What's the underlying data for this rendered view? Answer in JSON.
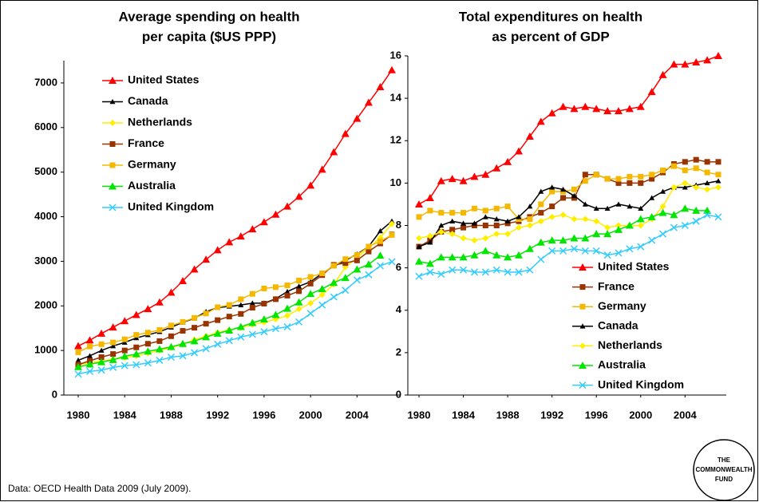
{
  "chart_data": [
    {
      "type": "line",
      "title": [
        "Average spending on health",
        "per capita ($US PPP)"
      ],
      "x": [
        1980,
        1981,
        1982,
        1983,
        1984,
        1985,
        1986,
        1987,
        1988,
        1989,
        1990,
        1991,
        1992,
        1993,
        1994,
        1995,
        1996,
        1997,
        1998,
        1999,
        2000,
        2001,
        2002,
        2003,
        2004,
        2005,
        2006,
        2007
      ],
      "xlim": [
        1980,
        2007
      ],
      "xticks": [
        1980,
        1984,
        1988,
        1992,
        1996,
        2000,
        2004
      ],
      "ylim": [
        0,
        7500
      ],
      "yticks": [
        0,
        1000,
        2000,
        3000,
        4000,
        5000,
        6000,
        7000
      ],
      "legend": "upper left",
      "series": [
        {
          "name": "United States",
          "color": "#ff0000",
          "marker": "triangle",
          "values": [
            1100,
            1230,
            1380,
            1520,
            1660,
            1800,
            1930,
            2080,
            2300,
            2560,
            2820,
            3040,
            3250,
            3430,
            3560,
            3720,
            3880,
            4050,
            4230,
            4450,
            4700,
            5060,
            5450,
            5860,
            6200,
            6560,
            6910,
            7290
          ]
        },
        {
          "name": "Canada",
          "color": "#000000",
          "marker": "small-triangle",
          "values": [
            780,
            880,
            1000,
            1100,
            1180,
            1280,
            1350,
            1420,
            1520,
            1630,
            1720,
            1870,
            1960,
            1990,
            2020,
            2060,
            2060,
            2160,
            2320,
            2440,
            2540,
            2730,
            2890,
            3020,
            3160,
            3330,
            3680,
            3900
          ]
        },
        {
          "name": "Netherlands",
          "color": "#ffee00",
          "marker": "diamond",
          "values": [
            680,
            720,
            760,
            800,
            840,
            880,
            940,
            1000,
            1060,
            1140,
            1240,
            1320,
            1400,
            1460,
            1510,
            1580,
            1630,
            1700,
            1780,
            1930,
            2060,
            2250,
            2480,
            2870,
            3080,
            3300,
            3530,
            3840
          ]
        },
        {
          "name": "France",
          "color": "#993300",
          "marker": "square",
          "values": [
            680,
            770,
            850,
            920,
            1000,
            1070,
            1150,
            1210,
            1320,
            1440,
            1510,
            1600,
            1680,
            1760,
            1820,
            1960,
            2050,
            2150,
            2230,
            2330,
            2500,
            2690,
            2920,
            2960,
            3020,
            3220,
            3400,
            3600
          ]
        },
        {
          "name": "Germany",
          "color": "#f5b800",
          "marker": "square",
          "values": [
            960,
            1090,
            1140,
            1180,
            1250,
            1350,
            1400,
            1460,
            1560,
            1640,
            1730,
            1830,
            1970,
            2020,
            2150,
            2270,
            2390,
            2420,
            2460,
            2570,
            2650,
            2730,
            2900,
            3050,
            3140,
            3330,
            3450,
            3590
          ]
        },
        {
          "name": "Australia",
          "color": "#00e600",
          "marker": "triangle",
          "values": [
            630,
            690,
            740,
            790,
            870,
            920,
            980,
            1030,
            1080,
            1150,
            1210,
            1300,
            1380,
            1450,
            1530,
            1620,
            1700,
            1800,
            1940,
            2080,
            2270,
            2380,
            2520,
            2630,
            2820,
            2930,
            3130,
            null
          ]
        },
        {
          "name": "United Kingdom",
          "color": "#33ccff",
          "marker": "x",
          "values": [
            470,
            530,
            560,
            620,
            660,
            680,
            720,
            780,
            850,
            880,
            950,
            1040,
            1140,
            1220,
            1300,
            1360,
            1420,
            1490,
            1530,
            1640,
            1830,
            2020,
            2200,
            2350,
            2580,
            2700,
            2900,
            2990
          ]
        }
      ]
    },
    {
      "type": "line",
      "title": [
        "Total expenditures on health",
        "as percent of GDP"
      ],
      "x": [
        1980,
        1981,
        1982,
        1983,
        1984,
        1985,
        1986,
        1987,
        1988,
        1989,
        1990,
        1991,
        1992,
        1993,
        1994,
        1995,
        1996,
        1997,
        1998,
        1999,
        2000,
        2001,
        2002,
        2003,
        2004,
        2005,
        2006,
        2007
      ],
      "xlim": [
        1980,
        2007
      ],
      "xticks": [
        1980,
        1984,
        1988,
        1992,
        1996,
        2000,
        2004
      ],
      "ylim": [
        0,
        16
      ],
      "yticks": [
        0,
        2,
        4,
        6,
        8,
        10,
        12,
        14,
        16
      ],
      "legend": "lower right",
      "series": [
        {
          "name": "United States",
          "color": "#ff0000",
          "marker": "triangle",
          "values": [
            9.0,
            9.3,
            10.1,
            10.2,
            10.1,
            10.3,
            10.4,
            10.7,
            11.0,
            11.5,
            12.2,
            12.9,
            13.3,
            13.6,
            13.5,
            13.6,
            13.5,
            13.4,
            13.4,
            13.5,
            13.6,
            14.3,
            15.1,
            15.6,
            15.6,
            15.7,
            15.8,
            16.0
          ]
        },
        {
          "name": "France",
          "color": "#993300",
          "marker": "square",
          "values": [
            7.0,
            7.3,
            7.7,
            7.8,
            7.9,
            8.0,
            8.0,
            8.0,
            8.1,
            8.2,
            8.4,
            8.6,
            8.9,
            9.3,
            9.3,
            10.4,
            10.4,
            10.2,
            10.0,
            10.0,
            10.0,
            10.2,
            10.5,
            10.9,
            11.0,
            11.1,
            11.0,
            11.0
          ]
        },
        {
          "name": "Germany",
          "color": "#f5b800",
          "marker": "square",
          "values": [
            8.4,
            8.7,
            8.6,
            8.6,
            8.6,
            8.8,
            8.7,
            8.8,
            8.9,
            8.3,
            8.3,
            9.0,
            9.6,
            9.6,
            9.7,
            10.1,
            10.4,
            10.2,
            10.2,
            10.3,
            10.3,
            10.4,
            10.6,
            10.8,
            10.6,
            10.7,
            10.5,
            10.4
          ]
        },
        {
          "name": "Canada",
          "color": "#000000",
          "marker": "small-triangle",
          "values": [
            7.0,
            7.2,
            8.0,
            8.2,
            8.1,
            8.1,
            8.4,
            8.3,
            8.2,
            8.4,
            8.9,
            9.6,
            9.8,
            9.7,
            9.4,
            9.0,
            8.8,
            8.8,
            9.0,
            8.9,
            8.8,
            9.3,
            9.6,
            9.8,
            9.8,
            9.9,
            10.0,
            10.1
          ]
        },
        {
          "name": "Netherlands",
          "color": "#ffee00",
          "marker": "diamond",
          "values": [
            7.4,
            7.5,
            7.7,
            7.6,
            7.4,
            7.3,
            7.4,
            7.6,
            7.6,
            7.9,
            8.0,
            8.2,
            8.4,
            8.5,
            8.3,
            8.3,
            8.2,
            7.9,
            8.0,
            8.0,
            8.0,
            8.3,
            8.9,
            9.8,
            10.0,
            9.8,
            9.7,
            9.8
          ]
        },
        {
          "name": "Australia",
          "color": "#00e600",
          "marker": "triangle",
          "values": [
            6.3,
            6.2,
            6.5,
            6.5,
            6.5,
            6.6,
            6.8,
            6.6,
            6.5,
            6.6,
            6.9,
            7.2,
            7.3,
            7.3,
            7.4,
            7.4,
            7.6,
            7.6,
            7.8,
            8.0,
            8.3,
            8.4,
            8.6,
            8.5,
            8.8,
            8.7,
            8.7,
            null
          ]
        },
        {
          "name": "United Kingdom",
          "color": "#33ccff",
          "marker": "x",
          "values": [
            5.6,
            5.8,
            5.7,
            5.9,
            5.9,
            5.8,
            5.8,
            5.9,
            5.8,
            5.8,
            5.9,
            6.4,
            6.8,
            6.8,
            6.9,
            6.8,
            6.8,
            6.6,
            6.7,
            6.9,
            7.0,
            7.3,
            7.6,
            7.9,
            8.0,
            8.2,
            8.5,
            8.4
          ]
        }
      ]
    }
  ],
  "source": "Data: OECD Health Data 2009 (July 2009).",
  "logo": [
    "THE",
    "COMMONWEALTH",
    "FUND"
  ]
}
